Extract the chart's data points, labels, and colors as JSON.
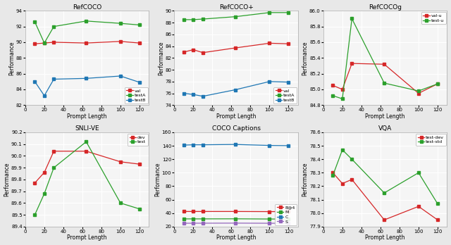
{
  "subplots": [
    {
      "title": "RefCOCO",
      "xlabel": "Prompt Length",
      "ylabel": "Performance",
      "series": [
        {
          "label": "val",
          "color": "#d62728",
          "x": [
            10,
            20,
            30,
            64,
            100,
            120
          ],
          "y": [
            89.8,
            89.9,
            90.0,
            89.9,
            90.1,
            89.9
          ]
        },
        {
          "label": "testA",
          "color": "#2ca02c",
          "x": [
            10,
            20,
            30,
            64,
            100,
            120
          ],
          "y": [
            92.6,
            89.9,
            92.0,
            92.7,
            92.4,
            92.2
          ]
        },
        {
          "label": "testB",
          "color": "#1f77b4",
          "x": [
            10,
            20,
            30,
            64,
            100,
            120
          ],
          "y": [
            85.0,
            83.2,
            85.3,
            85.4,
            85.7,
            84.9
          ]
        }
      ],
      "ylim": [
        82,
        94
      ],
      "legend_loc": "lower right"
    },
    {
      "title": "RefCOCO+",
      "xlabel": "Prompt Length",
      "ylabel": "Performance",
      "series": [
        {
          "label": "val",
          "color": "#d62728",
          "x": [
            10,
            20,
            30,
            64,
            100,
            120
          ],
          "y": [
            83.0,
            83.4,
            82.9,
            83.7,
            84.5,
            84.4
          ]
        },
        {
          "label": "testA",
          "color": "#2ca02c",
          "x": [
            10,
            20,
            30,
            64,
            100,
            120
          ],
          "y": [
            88.5,
            88.5,
            88.6,
            89.0,
            89.7,
            89.7
          ]
        },
        {
          "label": "testB",
          "color": "#1f77b4",
          "x": [
            10,
            20,
            30,
            64,
            100,
            120
          ],
          "y": [
            76.0,
            75.8,
            75.5,
            76.6,
            78.0,
            77.9
          ]
        }
      ],
      "ylim": [
        74,
        90
      ],
      "legend_loc": "lower right"
    },
    {
      "title": "RefCOCOg",
      "xlabel": "Prompt Length",
      "ylabel": "Performance",
      "series": [
        {
          "label": "val-u",
          "color": "#d62728",
          "x": [
            10,
            20,
            30,
            64,
            100,
            120
          ],
          "y": [
            85.05,
            85.0,
            85.33,
            85.32,
            84.95,
            85.07
          ]
        },
        {
          "label": "test-u",
          "color": "#2ca02c",
          "x": [
            10,
            20,
            30,
            64,
            100,
            120
          ],
          "y": [
            84.92,
            84.88,
            85.9,
            85.08,
            84.98,
            85.07
          ]
        }
      ],
      "ylim": [
        84.8,
        86.0
      ],
      "legend_loc": "upper right"
    },
    {
      "title": "SNLI-VE",
      "xlabel": "Prompt Length",
      "ylabel": "Performance",
      "series": [
        {
          "label": "dev",
          "color": "#d62728",
          "x": [
            10,
            20,
            30,
            64,
            100,
            120
          ],
          "y": [
            89.77,
            89.86,
            90.04,
            90.04,
            89.95,
            89.93
          ]
        },
        {
          "label": "test",
          "color": "#2ca02c",
          "x": [
            10,
            20,
            30,
            64,
            100,
            120
          ],
          "y": [
            89.5,
            89.68,
            89.9,
            90.12,
            89.6,
            89.55
          ]
        }
      ],
      "ylim": [
        89.4,
        90.2
      ],
      "legend_loc": "upper right"
    },
    {
      "title": "COCO Captions",
      "xlabel": "Prompt Length",
      "ylabel": "Performance",
      "series": [
        {
          "label": "B@4",
          "color": "#d62728",
          "x": [
            10,
            20,
            30,
            64,
            100,
            120
          ],
          "y": [
            42.5,
            42.5,
            42.5,
            42.5,
            42.3,
            42.4
          ]
        },
        {
          "label": "M",
          "color": "#2ca02c",
          "x": [
            10,
            20,
            30,
            64,
            100,
            120
          ],
          "y": [
            31.5,
            31.5,
            31.5,
            31.6,
            31.3,
            31.2
          ]
        },
        {
          "label": "C",
          "color": "#1f77b4",
          "x": [
            10,
            20,
            30,
            64,
            100,
            120
          ],
          "y": [
            141.0,
            141.5,
            141.5,
            142.0,
            140.5,
            140.2
          ]
        },
        {
          "label": "S",
          "color": "#9467bd",
          "x": [
            10,
            20,
            30,
            64,
            100,
            120
          ],
          "y": [
            25.0,
            25.1,
            25.1,
            25.2,
            25.0,
            25.0
          ]
        }
      ],
      "ylim": [
        20,
        160
      ],
      "legend_loc": "lower right"
    },
    {
      "title": "VQA",
      "xlabel": "Prompt Length",
      "ylabel": "Performance",
      "series": [
        {
          "label": "test-dev",
          "color": "#d62728",
          "x": [
            10,
            20,
            30,
            64,
            100,
            120
          ],
          "y": [
            78.3,
            78.22,
            78.25,
            77.95,
            78.05,
            77.95
          ]
        },
        {
          "label": "test-std",
          "color": "#2ca02c",
          "x": [
            10,
            20,
            30,
            64,
            100,
            120
          ],
          "y": [
            78.28,
            78.47,
            78.4,
            78.15,
            78.3,
            78.07
          ]
        }
      ],
      "ylim": [
        77.9,
        78.6
      ],
      "legend_loc": "upper right"
    }
  ],
  "figure_bg": "#e8e8e8",
  "axes_bg": "#f5f5f5"
}
